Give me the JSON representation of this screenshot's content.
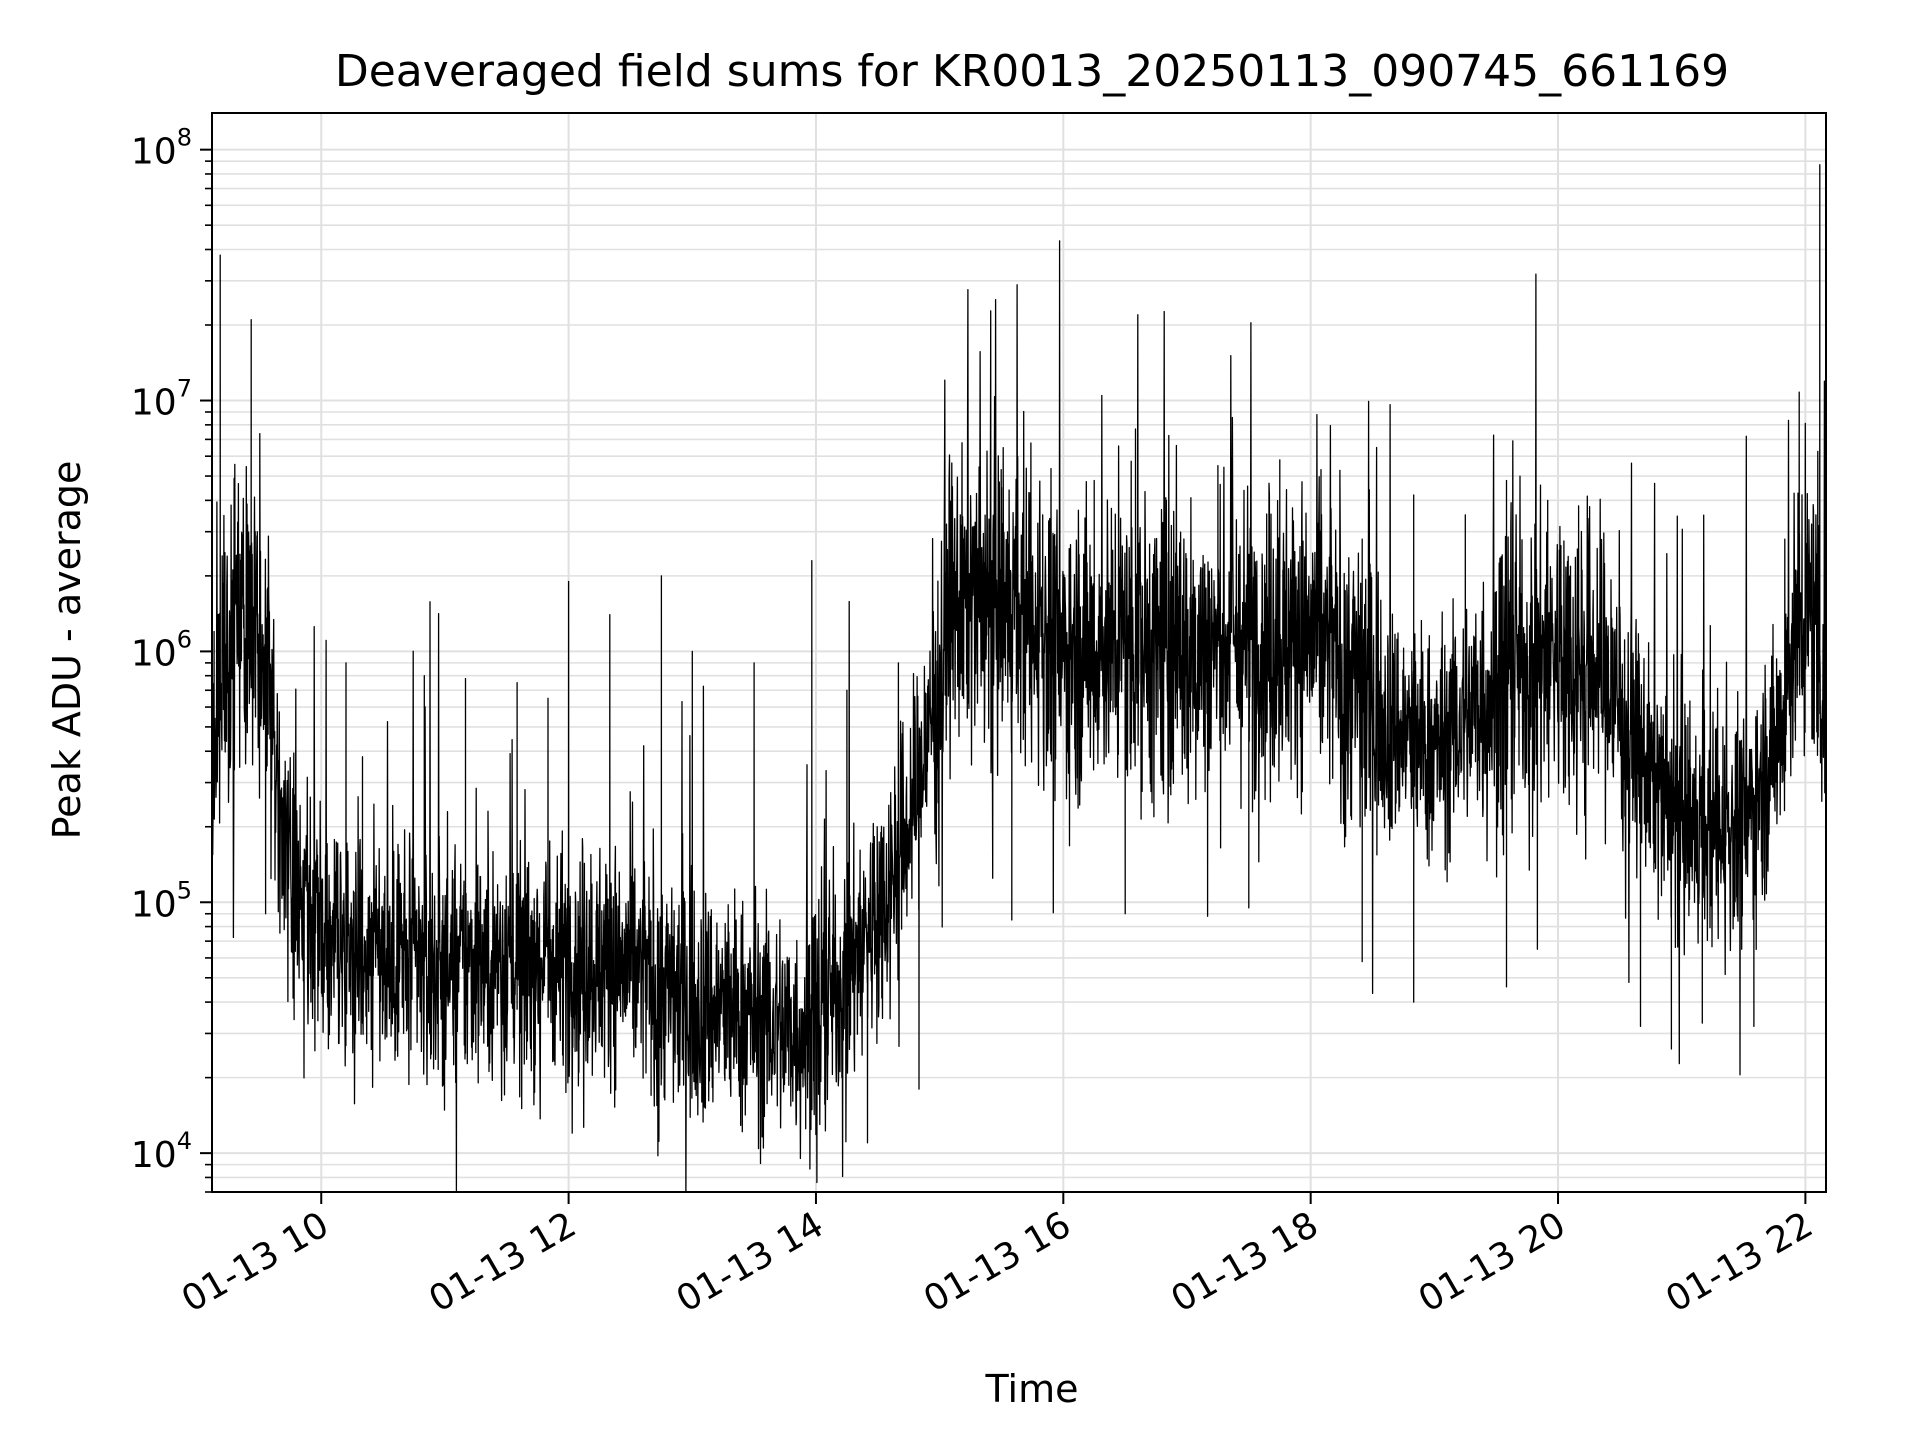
{
  "chart_data": {
    "type": "line",
    "title": "Deaveraged field sums for KR0013_20250113_090745_661169",
    "xlabel": "Time",
    "ylabel": "Peak ADU - average",
    "x_range": [
      "01-13 09:07",
      "01-13 22:10"
    ],
    "y_scale": "log",
    "ylim": [
      7000,
      140000000
    ],
    "grid": true,
    "line_color": "#000000",
    "grid_color": "#e0e0e0",
    "x_ticks": [
      {
        "value": "01-13 10:00",
        "label": "01-13 10"
      },
      {
        "value": "01-13 12:00",
        "label": "01-13 12"
      },
      {
        "value": "01-13 14:00",
        "label": "01-13 14"
      },
      {
        "value": "01-13 16:00",
        "label": "01-13 16"
      },
      {
        "value": "01-13 18:00",
        "label": "01-13 18"
      },
      {
        "value": "01-13 20:00",
        "label": "01-13 20"
      },
      {
        "value": "01-13 22:00",
        "label": "01-13 22"
      }
    ],
    "y_ticks": [
      {
        "value": 10000,
        "base": "10",
        "exp": "4"
      },
      {
        "value": 100000,
        "base": "10",
        "exp": "5"
      },
      {
        "value": 1000000,
        "base": "10",
        "exp": "6"
      },
      {
        "value": 10000000,
        "base": "10",
        "exp": "7"
      },
      {
        "value": 100000000,
        "base": "10",
        "exp": "8"
      }
    ],
    "series": [
      {
        "baseline": [
          [
            "01-13 09:07",
            400000
          ],
          [
            "01-13 09:12",
            900000
          ],
          [
            "01-13 09:20",
            1300000
          ],
          [
            "01-13 09:28",
            1500000
          ],
          [
            "01-13 09:35",
            800000
          ],
          [
            "01-13 09:40",
            200000
          ],
          [
            "01-13 09:45",
            120000
          ],
          [
            "01-13 09:52",
            80000
          ],
          [
            "01-13 10:00",
            75000
          ],
          [
            "01-13 10:30",
            65000
          ],
          [
            "01-13 11:00",
            55000
          ],
          [
            "01-13 11:30",
            60000
          ],
          [
            "01-13 12:00",
            60000
          ],
          [
            "01-13 12:30",
            55000
          ],
          [
            "01-13 13:00",
            40000
          ],
          [
            "01-13 13:30",
            35000
          ],
          [
            "01-13 13:50",
            30000
          ],
          [
            "01-13 14:10",
            45000
          ],
          [
            "01-13 14:30",
            90000
          ],
          [
            "01-13 14:45",
            200000
          ],
          [
            "01-13 14:55",
            500000
          ],
          [
            "01-13 15:05",
            1500000
          ],
          [
            "01-13 15:30",
            1500000
          ],
          [
            "01-13 16:00",
            1000000
          ],
          [
            "01-13 16:30",
            1100000
          ],
          [
            "01-13 17:00",
            1000000
          ],
          [
            "01-13 17:30",
            1100000
          ],
          [
            "01-13 18:00",
            1200000
          ],
          [
            "01-13 18:20",
            800000
          ],
          [
            "01-13 18:40",
            500000
          ],
          [
            "01-13 19:00",
            400000
          ],
          [
            "01-13 19:20",
            600000
          ],
          [
            "01-13 19:40",
            900000
          ],
          [
            "01-13 20:00",
            1000000
          ],
          [
            "01-13 20:20",
            900000
          ],
          [
            "01-13 20:35",
            500000
          ],
          [
            "01-13 20:50",
            250000
          ],
          [
            "01-13 21:10",
            180000
          ],
          [
            "01-13 21:30",
            200000
          ],
          [
            "01-13 21:45",
            400000
          ],
          [
            "01-13 21:55",
            1200000
          ],
          [
            "01-13 22:05",
            1500000
          ],
          [
            "01-13 22:10",
            500000
          ]
        ],
        "spikes": [
          [
            "01-13 09:08",
            1200000
          ],
          [
            "01-13 09:11",
            38000000
          ],
          [
            "01-13 09:17",
            1500000
          ],
          [
            "01-13 09:25",
            2500000
          ],
          [
            "01-13 09:26",
            21000000
          ],
          [
            "01-13 09:29",
            3000000
          ],
          [
            "01-13 10:12",
            900000
          ],
          [
            "01-13 10:20",
            380000
          ],
          [
            "01-13 10:50",
            800000
          ],
          [
            "01-13 11:10",
            780000
          ],
          [
            "01-13 11:35",
            750000
          ],
          [
            "01-13 11:50",
            650000
          ],
          [
            "01-13 12:00",
            1900000
          ],
          [
            "01-13 12:20",
            1400000
          ],
          [
            "01-13 12:45",
            2000000
          ],
          [
            "01-13 13:00",
            1000000
          ],
          [
            "01-13 13:30",
            900000
          ],
          [
            "01-13 13:58",
            2300000
          ],
          [
            "01-13 14:15",
            700000
          ],
          [
            "01-13 14:40",
            900000
          ],
          [
            "01-13 15:10",
            3500000
          ],
          [
            "01-13 15:30",
            4500000
          ],
          [
            "01-13 15:50",
            3500000
          ],
          [
            "01-13 16:15",
            4800000
          ],
          [
            "01-13 16:35",
            7700000
          ],
          [
            "01-13 16:50",
            4000000
          ],
          [
            "01-13 17:15",
            5500000
          ],
          [
            "01-13 17:45",
            5800000
          ],
          [
            "01-13 18:05",
            5300000
          ],
          [
            "01-13 18:25",
            2800000
          ],
          [
            "01-13 18:50",
            4200000
          ],
          [
            "01-13 19:15",
            3500000
          ],
          [
            "01-13 19:35",
            4800000
          ],
          [
            "01-13 19:55",
            4000000
          ],
          [
            "01-13 20:10",
            3800000
          ],
          [
            "01-13 20:30",
            1500000
          ],
          [
            "01-13 20:50",
            600000
          ],
          [
            "01-13 21:20",
            500000
          ],
          [
            "01-13 21:50",
            2800000
          ],
          [
            "01-13 21:57",
            10800000
          ],
          [
            "01-13 22:07",
            87000000
          ]
        ],
        "dips": [
          [
            "01-13 09:33",
            90000
          ],
          [
            "01-13 09:55",
            40000
          ],
          [
            "01-13 10:20",
            33000
          ],
          [
            "01-13 11:10",
            25000
          ],
          [
            "01-13 11:40",
            28000
          ],
          [
            "01-13 12:05",
            21000
          ],
          [
            "01-13 12:40",
            17000
          ],
          [
            "01-13 13:10",
            16000
          ],
          [
            "01-13 13:35",
            14000
          ],
          [
            "01-13 13:55",
            12500
          ],
          [
            "01-13 14:25",
            11000
          ],
          [
            "01-13 14:50",
            18000
          ],
          [
            "01-13 15:35",
            85000
          ],
          [
            "01-13 16:30",
            90000
          ],
          [
            "01-13 17:10",
            88000
          ],
          [
            "01-13 17:30",
            95000
          ],
          [
            "01-13 18:25",
            58000
          ],
          [
            "01-13 18:50",
            40000
          ],
          [
            "01-13 19:35",
            46000
          ],
          [
            "01-13 19:50",
            65000
          ],
          [
            "01-13 20:40",
            32000
          ],
          [
            "01-13 20:55",
            26000
          ],
          [
            "01-13 21:10",
            33000
          ],
          [
            "01-13 21:35",
            32000
          ],
          [
            "01-13 21:55",
            1000000
          ]
        ]
      }
    ]
  }
}
